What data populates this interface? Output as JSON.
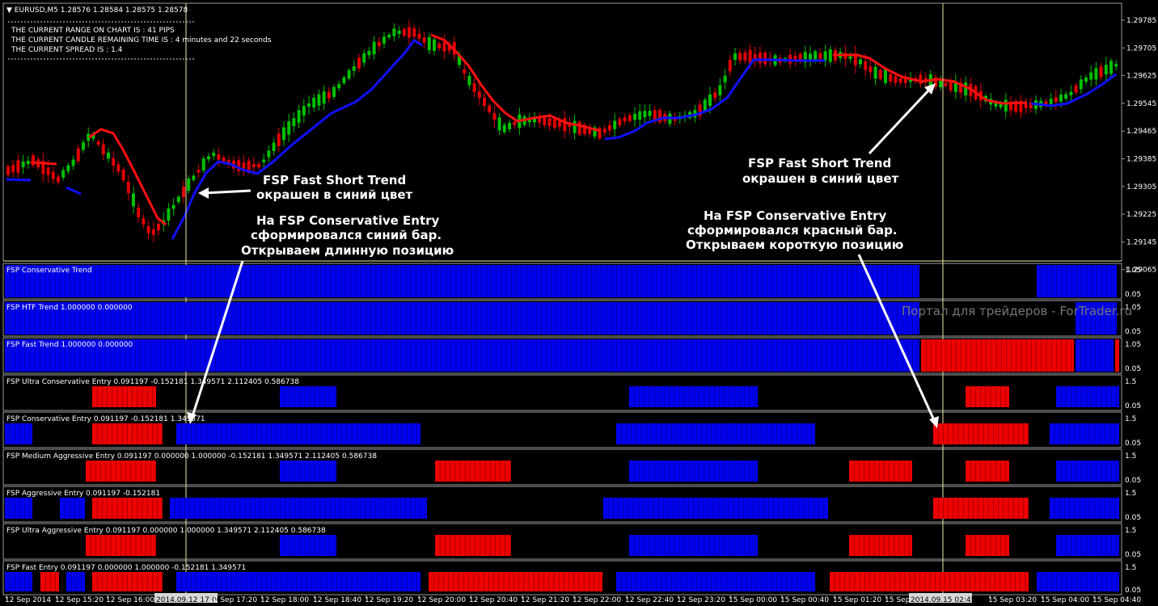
{
  "symbol_header": "EURUSD,M5  1.28576 1.28584 1.28575 1.28578",
  "info_lines": [
    "THE CURRENT RANGE ON CHART IS : 41 PIPS",
    "THE CURRENT CANDLE REMAINING TIME IS : 4 minutes and 22 seconds",
    "THE CURRENT SPREAD IS : 1.4"
  ],
  "price_ticks": [
    "1.29785",
    "1.29705",
    "1.29625",
    "1.29545",
    "1.29465",
    "1.29385",
    "1.29305",
    "1.29225",
    "1.29145",
    "1.29065"
  ],
  "annotations": {
    "a1_l1": "FSP Fast Short Trend",
    "a1_l2": "окрашен в синий цвет",
    "a2_l1": "FSP Fast Short Trend",
    "a2_l2": "окрашен в синий цвет",
    "a3_l1": "На FSP Conservative Entry",
    "a3_l2": "сформировался синий бар.",
    "a3_l3": "Открываем длинную позицию",
    "a4_l1": "На FSP Conservative Entry",
    "a4_l2": "сформировался красный бар.",
    "a4_l3": "Открываем короткую позицию"
  },
  "watermark": "Портал для трейдеров - ForTrader.ru",
  "colors": {
    "bull": "#00c000",
    "bear": "#e00000",
    "fast_up": "#1010ff",
    "fast_down": "#ff1010",
    "bar_blue": "#0000ee",
    "bar_red": "#ee0000",
    "crosshair": "#f0e6a0"
  },
  "panels": [
    {
      "label": "FSP Conservative Trend",
      "scale_top": "1.05",
      "scale_bottom": "0.05"
    },
    {
      "label": "FSP HTF Trend 1.000000 0.000000",
      "scale_top": "1.05",
      "scale_bottom": "0.05"
    },
    {
      "label": "FSP Fast Trend 1.000000 0.000000",
      "scale_top": "1.05",
      "scale_bottom": "0.05"
    },
    {
      "label": "FSP Ultra Conservative Entry 0.091197 -0.152181 1.349571 2.112405 0.586738",
      "scale_top": "1.5",
      "scale_bottom": "0.05"
    },
    {
      "label": "FSP Conservative Entry 0.091197 -0.152181 1.349571",
      "scale_top": "1.5",
      "scale_bottom": "0.05"
    },
    {
      "label": "FSP Medium Aggressive Entry 0.091197 0.000000 1.000000 -0.152181 1.349571 2.112405 0.586738",
      "scale_top": "1.5",
      "scale_bottom": "0.05"
    },
    {
      "label": "FSP Aggressive Entry 0.091197 -0.152181",
      "scale_top": "1.5",
      "scale_bottom": "0.05"
    },
    {
      "label": "FSP Ultra Aggressive Entry 0.091197 0.000000 1.000000 1.349571 2.112405 0.586738",
      "scale_top": "1.5",
      "scale_bottom": "0.05"
    },
    {
      "label": "FSP Fast Entry 0.091197 0.000000 1.000000 -0.152181 1.349571",
      "scale_top": "1.5",
      "scale_bottom": "0.05"
    }
  ],
  "time_labels": [
    {
      "text": "12 Sep 2014"
    },
    {
      "text": "12 Sep 15:20"
    },
    {
      "text": "12 Sep 16:00"
    },
    {
      "text": "2014.09.12 17:00",
      "highlight": true
    },
    {
      "text": "12 Sep 17:20"
    },
    {
      "text": "12 Sep 18:00"
    },
    {
      "text": "12 Sep 18:40"
    },
    {
      "text": "12 Sep 19:20"
    },
    {
      "text": "12 Sep 20:00"
    },
    {
      "text": "12 Sep 20:40"
    },
    {
      "text": "12 Sep 21:20"
    },
    {
      "text": "12 Sep 22:00"
    },
    {
      "text": "12 Sep 22:40"
    },
    {
      "text": "12 Sep 23:20"
    },
    {
      "text": "15 Sep 00:00"
    },
    {
      "text": "15 Sep 00:40"
    },
    {
      "text": "15 Sep 01:20"
    },
    {
      "text": "15 Sep 02:00"
    },
    {
      "text": "2014.09.15 02:45",
      "highlight": true
    },
    {
      "text": "15 Sep 03:20"
    },
    {
      "text": "15 Sep 04:00"
    },
    {
      "text": "15 Sep 04:40"
    }
  ]
}
